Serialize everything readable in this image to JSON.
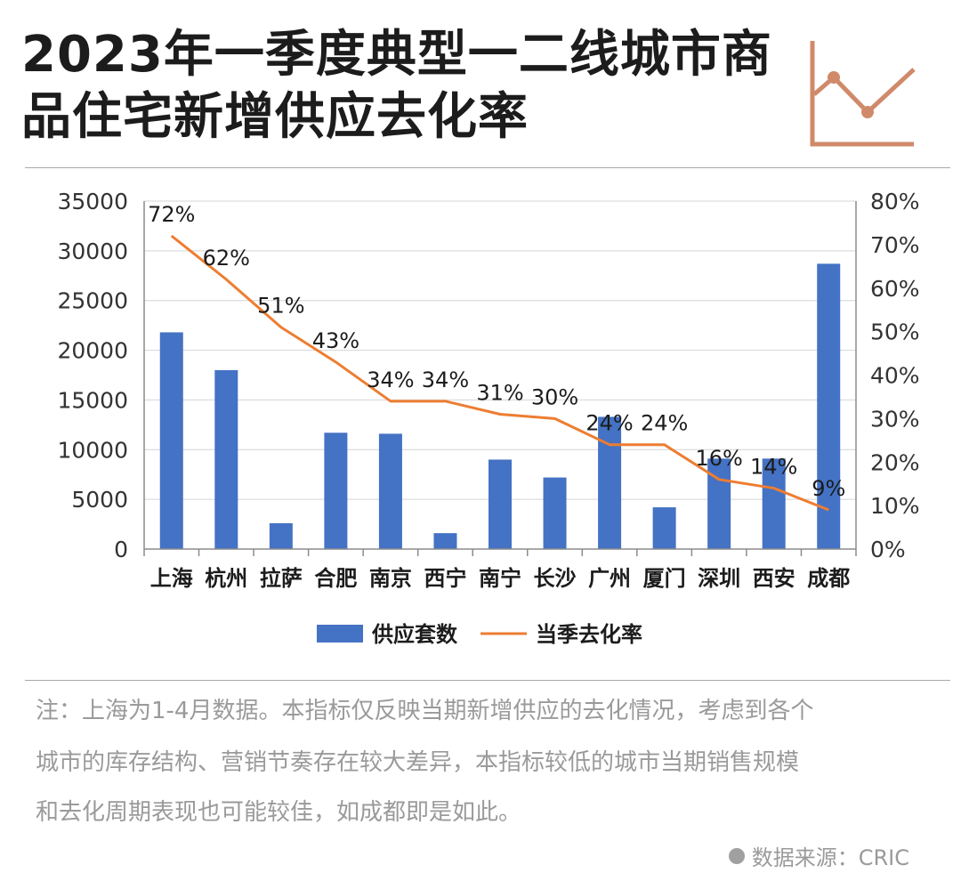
{
  "title": {
    "line1": "2023年一季度典型一二线城市商",
    "line2": "品住宅新增供应去化率"
  },
  "header_icon": "line-chart-icon",
  "chart_data": {
    "type": "bar",
    "categories": [
      "上海",
      "杭州",
      "拉萨",
      "合肥",
      "南京",
      "西宁",
      "南宁",
      "长沙",
      "广州",
      "厦门",
      "深圳",
      "西安",
      "成都"
    ],
    "series": [
      {
        "name": "供应套数",
        "type": "bar",
        "axis": "left",
        "color": "#4472c4",
        "values": [
          21800,
          18000,
          2600,
          11700,
          11600,
          1600,
          9000,
          7200,
          13300,
          4200,
          9100,
          9100,
          28700
        ]
      },
      {
        "name": "当季去化率",
        "type": "line",
        "axis": "right",
        "color": "#ed7d31",
        "values": [
          72,
          62,
          51,
          43,
          34,
          34,
          31,
          30,
          24,
          24,
          16,
          14,
          9
        ],
        "labels": [
          "72%",
          "62%",
          "51%",
          "43%",
          "34%",
          "34%",
          "31%",
          "30%",
          "24%",
          "24%",
          "16%",
          "14%",
          "9%"
        ]
      }
    ],
    "y_left": {
      "min": 0,
      "max": 35000,
      "ticks": [
        "0",
        "5000",
        "10000",
        "15000",
        "20000",
        "25000",
        "30000",
        "35000"
      ]
    },
    "y_right": {
      "min": 0,
      "max": 80,
      "ticks": [
        "0%",
        "10%",
        "20%",
        "30%",
        "40%",
        "50%",
        "60%",
        "70%",
        "80%"
      ]
    },
    "grid": true,
    "legend_position": "bottom"
  },
  "note": {
    "line1": "注：上海为1-4月数据。本指标仅反映当期新增供应的去化情况，考虑到各个",
    "line2": "城市的库存结构、营销节奏存在较大差异，本指标较低的城市当期销售规模",
    "line3": "和去化周期表现也可能较佳，如成都即是如此。"
  },
  "source": "数据来源：CRIC"
}
